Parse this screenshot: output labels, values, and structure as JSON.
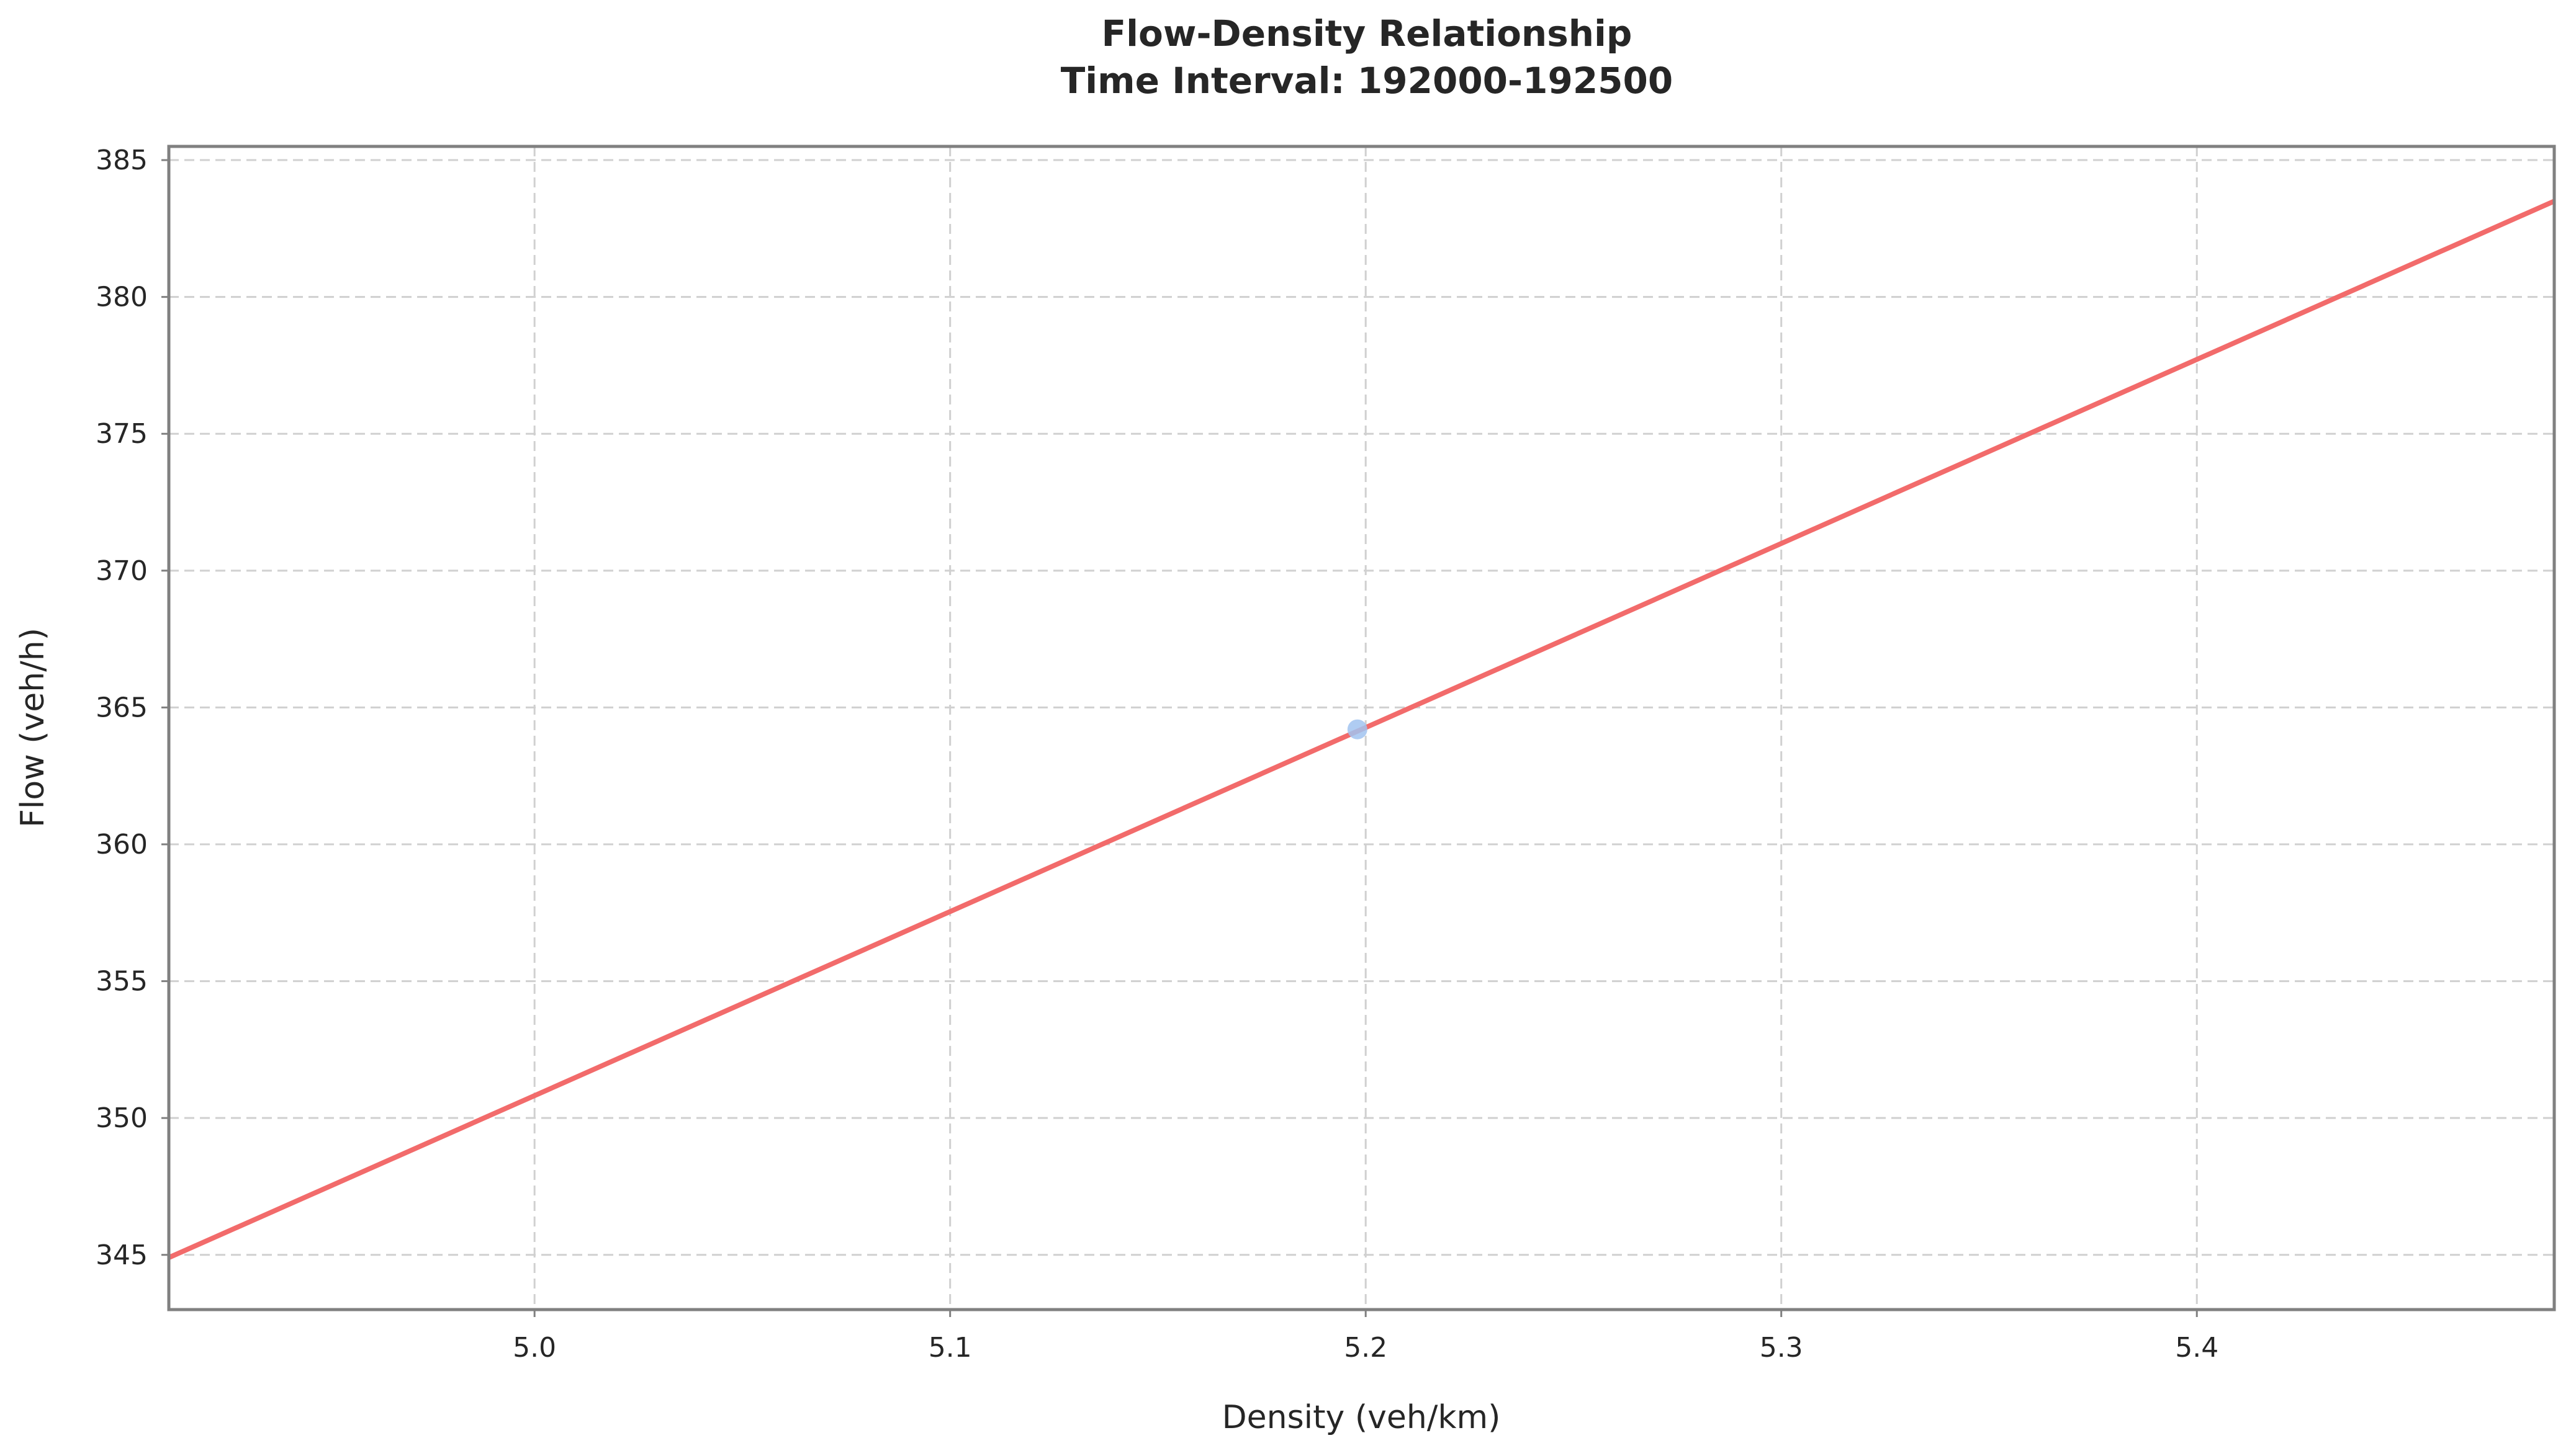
{
  "chart_data": {
    "type": "scatter",
    "title": "Flow-Density Relationship",
    "subtitle": "Time Interval: 192000-192500",
    "xlabel": "Density (veh/km)",
    "ylabel": "Flow (veh/h)",
    "xlim": [
      4.912,
      5.486
    ],
    "ylim": [
      343.0,
      385.5
    ],
    "xticks": [
      5.0,
      5.1,
      5.2,
      5.3,
      5.4
    ],
    "xtick_labels": [
      "5.0",
      "5.1",
      "5.2",
      "5.3",
      "5.4"
    ],
    "yticks": [
      345,
      350,
      355,
      360,
      365,
      370,
      375,
      380,
      385
    ],
    "ytick_labels": [
      "345",
      "350",
      "355",
      "360",
      "365",
      "370",
      "375",
      "380",
      "385"
    ],
    "grid": true,
    "series": [
      {
        "type": "scatter",
        "color": "#a1c3f0",
        "points": [
          {
            "x": 5.198,
            "y": 364.2
          }
        ]
      },
      {
        "type": "line",
        "color": "#f26b6b",
        "x": [
          4.912,
          5.486
        ],
        "y": [
          344.9,
          383.5
        ]
      }
    ]
  }
}
